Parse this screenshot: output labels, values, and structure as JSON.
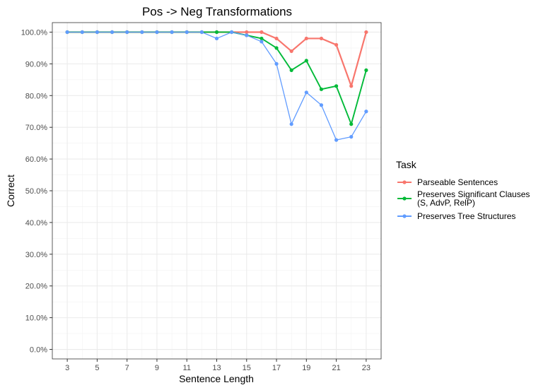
{
  "chart_data": {
    "type": "line",
    "title": "Pos -> Neg Transformations",
    "xlabel": "Sentence Length",
    "ylabel": "Correct",
    "xlim": [
      2.0,
      24.0
    ],
    "ylim": [
      -0.03,
      1.03
    ],
    "x_ticks": [
      3,
      5,
      7,
      9,
      11,
      13,
      15,
      17,
      19,
      21,
      23
    ],
    "x_tick_labels": [
      "3",
      "5",
      "7",
      "9",
      "11",
      "13",
      "15",
      "17",
      "19",
      "21",
      "23"
    ],
    "y_ticks": [
      0,
      0.1,
      0.2,
      0.3,
      0.4,
      0.5,
      0.6,
      0.7,
      0.8,
      0.9,
      1.0
    ],
    "y_tick_labels": [
      "0.0%",
      "10.0%",
      "20.0%",
      "30.0%",
      "40.0%",
      "50.0%",
      "60.0%",
      "70.0%",
      "80.0%",
      "90.0%",
      "100.0%"
    ],
    "grid": true,
    "legend": {
      "title": "Task",
      "position": "right",
      "entries": [
        [
          "Parseable Sentences"
        ],
        [
          "Preserves Significant Clauses",
          " (S, AdvP, RelP)"
        ],
        [
          "Preserves Tree Structures"
        ]
      ]
    },
    "x": [
      3,
      4,
      5,
      6,
      7,
      8,
      9,
      10,
      11,
      12,
      13,
      14,
      15,
      16,
      17,
      18,
      19,
      20,
      21,
      22,
      23
    ],
    "series": [
      {
        "name": "Parseable Sentences",
        "color": "#f8766d",
        "values": [
          1.0,
          1.0,
          1.0,
          1.0,
          1.0,
          1.0,
          1.0,
          1.0,
          1.0,
          1.0,
          1.0,
          1.0,
          1.0,
          1.0,
          0.98,
          0.94,
          0.98,
          0.98,
          0.96,
          0.83,
          1.0
        ]
      },
      {
        "name": "Preserves Significant Clauses (S, AdvP, RelP)",
        "color": "#00ba38",
        "values": [
          1.0,
          1.0,
          1.0,
          1.0,
          1.0,
          1.0,
          1.0,
          1.0,
          1.0,
          1.0,
          1.0,
          1.0,
          0.99,
          0.98,
          0.95,
          0.88,
          0.91,
          0.82,
          0.83,
          0.71,
          0.88
        ]
      },
      {
        "name": "Preserves Tree Structures",
        "color": "#619cff",
        "values": [
          1.0,
          1.0,
          1.0,
          1.0,
          1.0,
          1.0,
          1.0,
          1.0,
          1.0,
          1.0,
          0.98,
          1.0,
          0.99,
          0.97,
          0.9,
          0.71,
          0.81,
          0.77,
          0.66,
          0.67,
          0.75
        ]
      }
    ]
  }
}
